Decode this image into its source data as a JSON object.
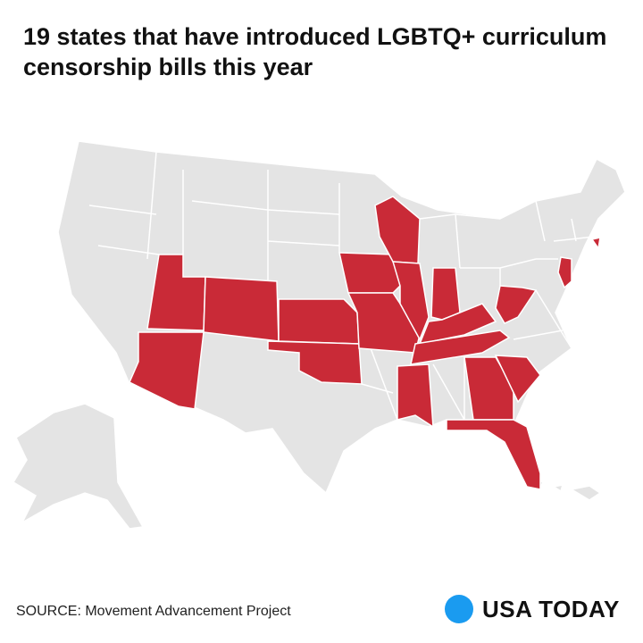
{
  "header": {
    "title": "19 states that have introduced LGBTQ+ curriculum censorship bills this year"
  },
  "footer": {
    "source": "SOURCE: Movement Advancement Project",
    "brand": "USA TODAY"
  }
}
